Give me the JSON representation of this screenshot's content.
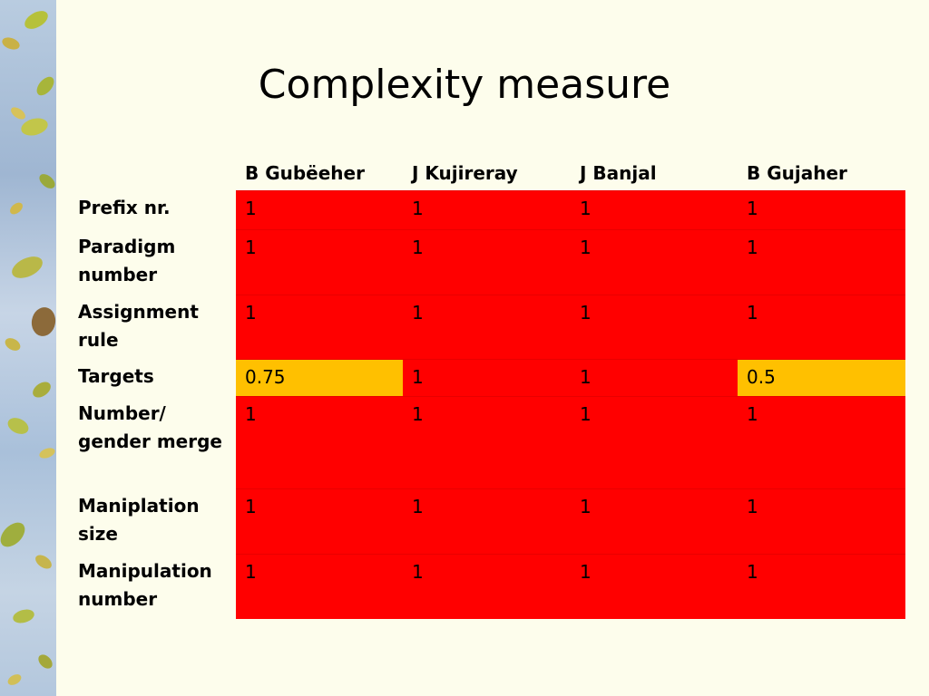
{
  "title": "Complexity measure",
  "table": {
    "columns": [
      "B Gubëeher",
      "J Kujireray",
      "J Banjal",
      "B Gujaher"
    ],
    "rows": [
      {
        "label": "Prefix nr.",
        "values": [
          "1",
          "1",
          "1",
          "1"
        ]
      },
      {
        "label": "Paradigm number",
        "values": [
          "1",
          "1",
          "1",
          "1"
        ]
      },
      {
        "label": "Assignment rule",
        "values": [
          "1",
          "1",
          "1",
          "1"
        ]
      },
      {
        "label": "Targets",
        "values": [
          "0.75",
          "1",
          "1",
          "0.5"
        ]
      },
      {
        "label": "Number/ gender merge",
        "values": [
          "1",
          "1",
          "1",
          "1"
        ]
      },
      {
        "label": "Maniplation size",
        "values": [
          "1",
          "1",
          "1",
          "1"
        ]
      },
      {
        "label": "Manipulation number",
        "values": [
          "1",
          "1",
          "1",
          "1"
        ]
      }
    ]
  },
  "colors": {
    "cell_full": "#ff0000",
    "cell_partial": "#ffc000",
    "background": "#fdfdec"
  }
}
